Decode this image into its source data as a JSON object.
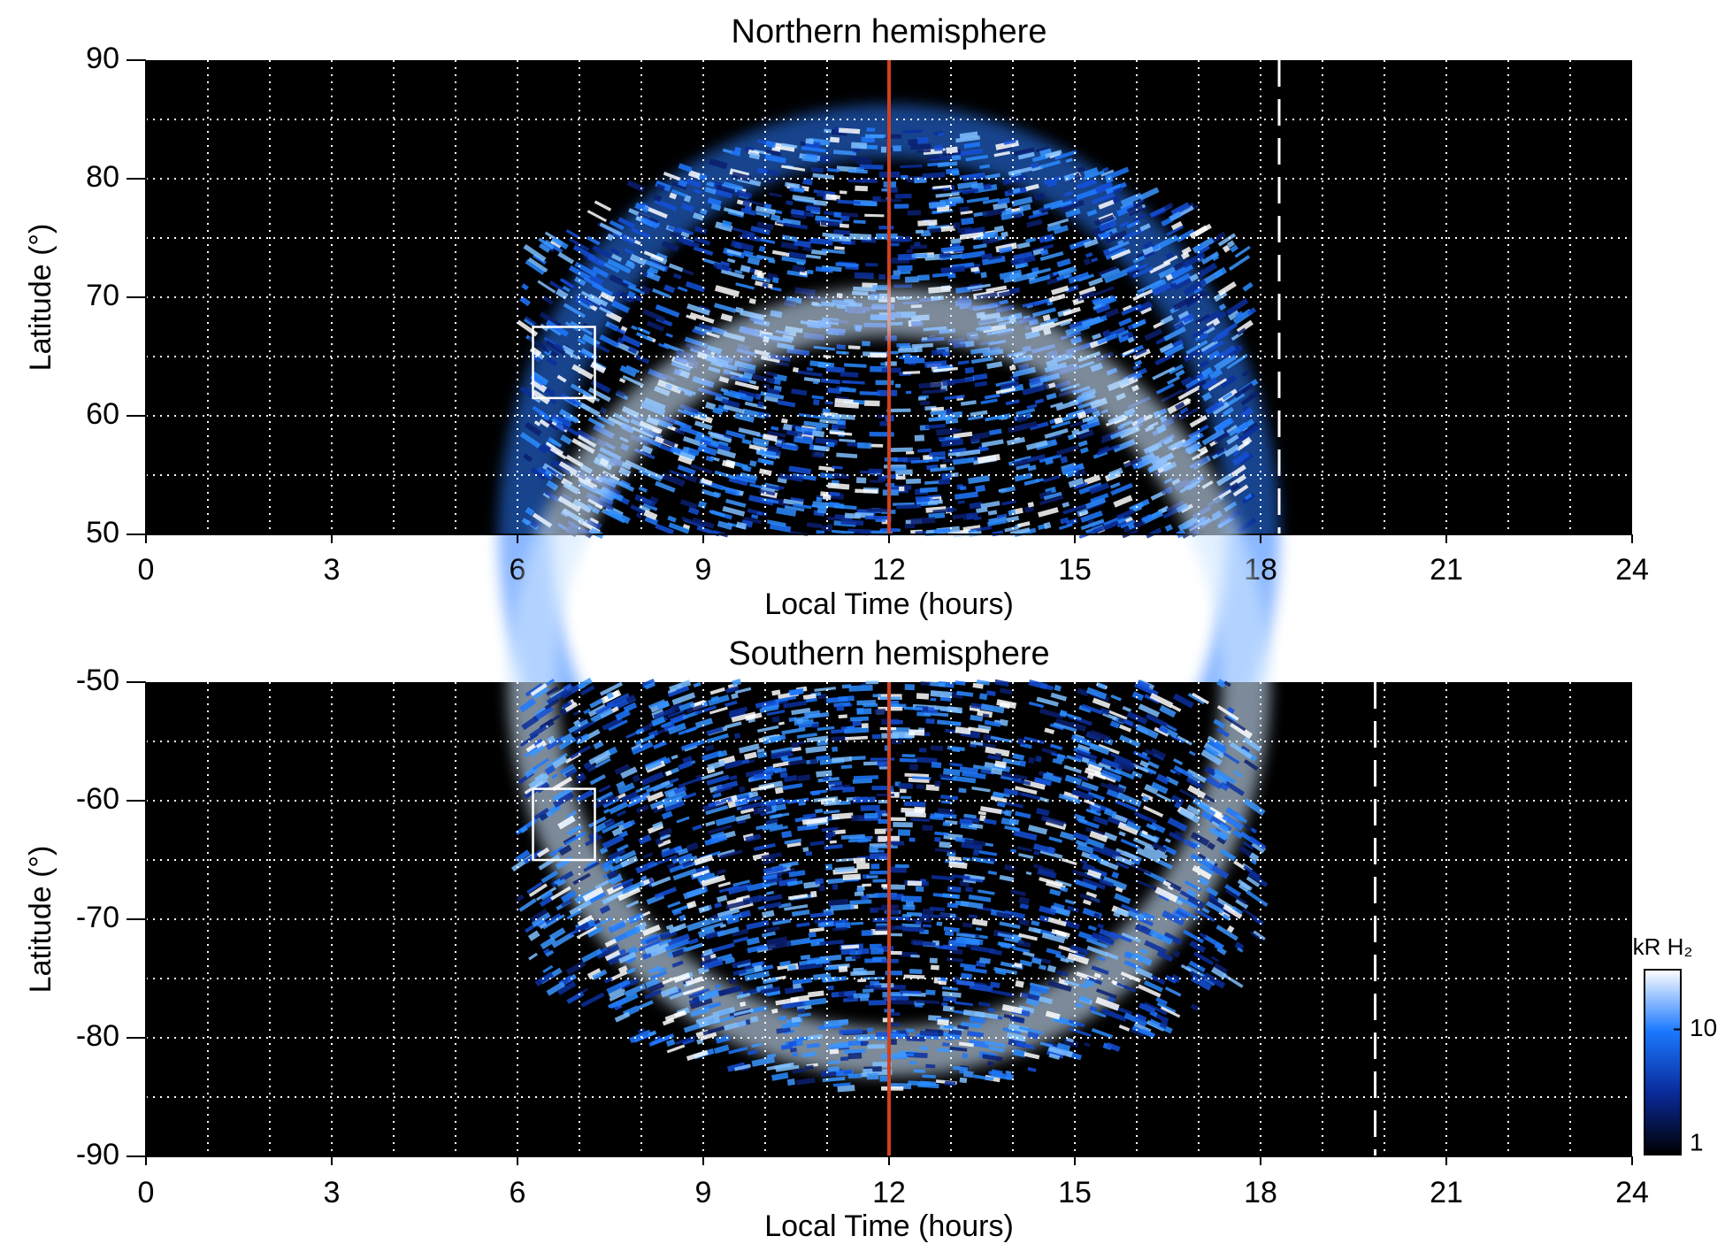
{
  "chart_data": [
    {
      "type": "heatmap",
      "title": "Northern hemisphere",
      "xlabel": "Local Time (hours)",
      "ylabel": "Latitude (°)",
      "xlim": [
        0,
        24
      ],
      "xticks": [
        0,
        3,
        6,
        9,
        12,
        15,
        18,
        21,
        24
      ],
      "ylim": [
        50,
        90
      ],
      "yticks": [
        50,
        60,
        70,
        80,
        90
      ],
      "xgrid": [
        1,
        2,
        3,
        4,
        5,
        6,
        7,
        8,
        9,
        10,
        11,
        12,
        13,
        14,
        15,
        16,
        17,
        18,
        19,
        20,
        21,
        22,
        23
      ],
      "ygrid": [
        55,
        60,
        65,
        70,
        75,
        80,
        85
      ],
      "reference_line": {
        "x": 12,
        "color": "#d2401e"
      },
      "dashed_line": {
        "x": 18.3,
        "color": "#ffffff"
      },
      "box": {
        "x": [
          6.25,
          7.25
        ],
        "y": [
          61.5,
          67.5
        ],
        "color": "#ffffff"
      }
    },
    {
      "type": "heatmap",
      "title": "Southern hemisphere",
      "xlabel": "Local Time (hours)",
      "ylabel": "Latitude (°)",
      "xlim": [
        0,
        24
      ],
      "xticks": [
        0,
        3,
        6,
        9,
        12,
        15,
        18,
        21,
        24
      ],
      "ylim": [
        -90,
        -50
      ],
      "yticks": [
        -90,
        -80,
        -70,
        -60,
        -50
      ],
      "xgrid": [
        1,
        2,
        3,
        4,
        5,
        6,
        7,
        8,
        9,
        10,
        11,
        12,
        13,
        14,
        15,
        16,
        17,
        18,
        19,
        20,
        21,
        22,
        23
      ],
      "ygrid": [
        -85,
        -80,
        -75,
        -70,
        -65,
        -60,
        -55
      ],
      "reference_line": {
        "x": 12,
        "color": "#d2401e"
      },
      "dashed_line": {
        "x": 19.85,
        "color": "#ffffff"
      },
      "box": {
        "x": [
          6.25,
          7.25
        ],
        "y": [
          -65,
          -59
        ],
        "color": "#ffffff"
      },
      "colorbar": {
        "label": "kR H₂",
        "log": true,
        "lim": [
          1,
          30
        ],
        "ticks": [
          1,
          10
        ],
        "colors": [
          "#000000",
          "#0a2a9a",
          "#1a78ff",
          "#ffffff"
        ]
      }
    }
  ]
}
